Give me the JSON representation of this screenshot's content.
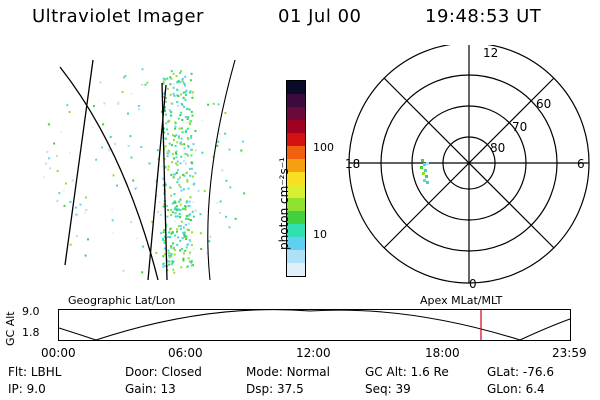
{
  "header": {
    "instrument": "Ultraviolet Imager",
    "date": "01 Jul 00",
    "time": "19:48:53 UT"
  },
  "colorbar": {
    "label": "photon cm⁻²s⁻¹",
    "ticks": [
      "100",
      "10"
    ],
    "colors": [
      "#0a0a2a",
      "#3c0a3c",
      "#6a0a3a",
      "#a00020",
      "#d41010",
      "#f06010",
      "#f4a010",
      "#f8e020",
      "#d8f030",
      "#90e030",
      "#40d040",
      "#30e0b0",
      "#60d0f0",
      "#b0e0f8",
      "#e0f0f8"
    ]
  },
  "polar_plot": {
    "mlt_labels": {
      "top": "12",
      "left": "18",
      "right": "6",
      "bottom": "0"
    },
    "lat_labels": [
      "60",
      "70",
      "80"
    ]
  },
  "left_labels": {
    "geographic": "Geographic Lat/Lon",
    "apex": "Apex MLat/MLT"
  },
  "altitude_plot": {
    "axis_title": "GC Alt",
    "y_ticks": [
      "9.0",
      "1.8"
    ],
    "x_ticks": [
      "00:00",
      "06:00",
      "12:00",
      "18:00",
      "23:59"
    ]
  },
  "info": {
    "row1": [
      {
        "key": "Flt:",
        "val": "LBHL"
      },
      {
        "key": "Door:",
        "val": "Closed"
      },
      {
        "key": "Mode:",
        "val": "Normal"
      },
      {
        "key": "GC Alt:",
        "val": "1.6 Re"
      },
      {
        "key": "GLat:",
        "val": "-76.6"
      }
    ],
    "row2": [
      {
        "key": "IP:",
        "val": "9.0"
      },
      {
        "key": "Gain:",
        "val": "13"
      },
      {
        "key": "Dsp:",
        "val": "37.5"
      },
      {
        "key": "Seq:",
        "val": "39"
      },
      {
        "key": "GLon:",
        "val": "6.4"
      }
    ]
  }
}
